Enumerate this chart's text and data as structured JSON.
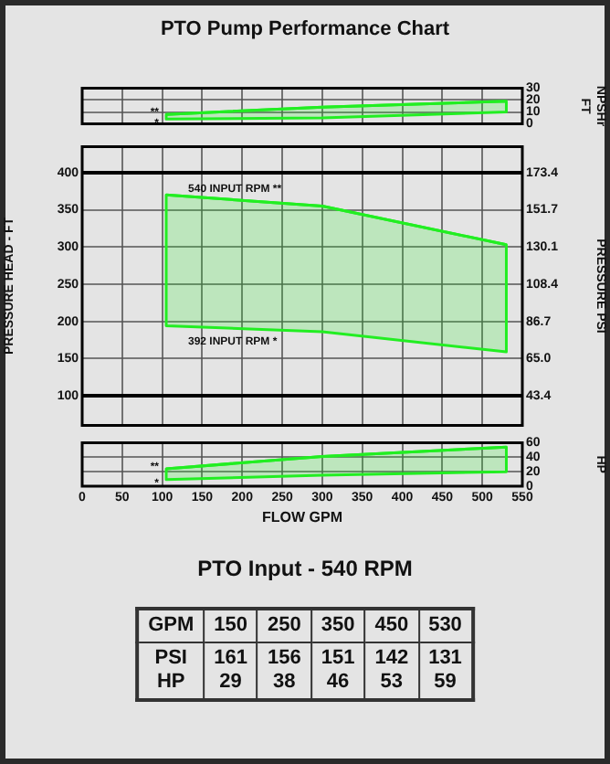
{
  "chart_data": [
    {
      "type": "line",
      "title": "PTO Pump Performance Chart",
      "x": [
        105,
        300,
        530
      ],
      "series": [
        {
          "color": "#22ee22",
          "values": [
            8,
            14,
            19
          ],
          "upper": [
            8,
            14,
            19
          ],
          "lower": [
            4,
            5,
            10
          ]
        }
      ],
      "xlim": [
        0,
        550
      ],
      "xticks": [
        0,
        50,
        100,
        150,
        200,
        250,
        300,
        350,
        400,
        450,
        500,
        550
      ],
      "ylim": [
        0,
        30
      ],
      "yticks": [
        0,
        10,
        20,
        30
      ],
      "ylabel": "NPSHr FT",
      "tick_labels": "y",
      "grid": true,
      "marker": "none",
      "annotations": [
        "**",
        "*"
      ]
    },
    {
      "type": "line",
      "x": [
        105,
        300,
        530
      ],
      "series": [
        {
          "color": "#22ee22",
          "values": [
            370,
            355,
            303
          ],
          "upper": [
            370,
            355,
            303
          ],
          "lower": [
            194,
            186,
            159
          ]
        }
      ],
      "xlim": [
        0,
        550
      ],
      "xticks": [
        0,
        50,
        100,
        150,
        200,
        250,
        300,
        350,
        400,
        450,
        500,
        550
      ],
      "ylim": [
        60,
        435
      ],
      "yticks": [
        100,
        150,
        200,
        250,
        300,
        350,
        400
      ],
      "y2lim": [
        26.01,
        188.57
      ],
      "y2ticks": [
        43.4,
        {
          "value": 65,
          "label": "65.0"
        },
        86.7,
        108.4,
        130.1,
        151.7,
        173.4
      ],
      "ylabel": "PRESSURE HEAD - FT",
      "y2label": "PRESSURE PSI",
      "tick_labels": "y",
      "grid": true,
      "marker": "none",
      "annotations": [
        "540 INPUT RPM **",
        "392 INPUT RPM *"
      ]
    },
    {
      "type": "line",
      "x": [
        105,
        300,
        530
      ],
      "series": [
        {
          "color": "#22ee22",
          "values": [
            24,
            41,
            54
          ],
          "upper": [
            24,
            41,
            54
          ],
          "lower": [
            9,
            15,
            20
          ]
        }
      ],
      "xlim": [
        0,
        550
      ],
      "xticks": [
        0,
        50,
        100,
        150,
        200,
        250,
        300,
        350,
        400,
        450,
        500,
        550
      ],
      "ylim": [
        0,
        60
      ],
      "yticks": [
        0,
        20,
        40,
        60
      ],
      "xlabel": "FLOW GPM",
      "ylabel": "HP",
      "grid": true,
      "marker": "none",
      "annotations": [
        "**",
        "*"
      ]
    },
    {
      "type": "other",
      "title": "PTO Input - 540 RPM",
      "xlabel": "GPM",
      "categories": [
        "150",
        "250",
        "350",
        "450",
        "530"
      ],
      "series": [
        {
          "name": "PSI",
          "values": [
            161,
            156,
            151,
            142,
            131
          ]
        },
        {
          "name": "HP",
          "values": [
            29,
            38,
            46,
            53,
            59
          ]
        }
      ],
      "data_labels": true
    }
  ]
}
